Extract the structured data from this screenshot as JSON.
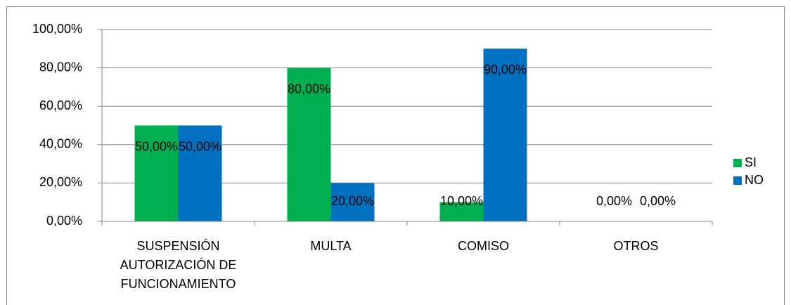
{
  "chart_data": {
    "type": "bar",
    "categories": [
      "SUSPENSIÓN AUTORIZACIÓN DE FUNCIONAMIENTO",
      "MULTA",
      "COMISO",
      "OTROS"
    ],
    "series": [
      {
        "name": "SI",
        "color": "#00b050",
        "values": [
          50,
          80,
          10,
          0
        ],
        "value_labels": [
          "50,00%",
          "80,00%",
          "10,00%",
          "0,00%"
        ]
      },
      {
        "name": "NO",
        "color": "#0070c0",
        "values": [
          50,
          20,
          90,
          0
        ],
        "value_labels": [
          "50,00%",
          "20,00%",
          "90,00%",
          "0,00%"
        ]
      }
    ],
    "ylim": [
      0,
      100
    ],
    "yticks": [
      {
        "value": 0,
        "label": "0,00%"
      },
      {
        "value": 20,
        "label": "20,00%"
      },
      {
        "value": 40,
        "label": "40,00%"
      },
      {
        "value": 60,
        "label": "60,00%"
      },
      {
        "value": 80,
        "label": "80,00%"
      },
      {
        "value": 100,
        "label": "100,00%"
      }
    ],
    "grid": true,
    "legend": "right"
  }
}
